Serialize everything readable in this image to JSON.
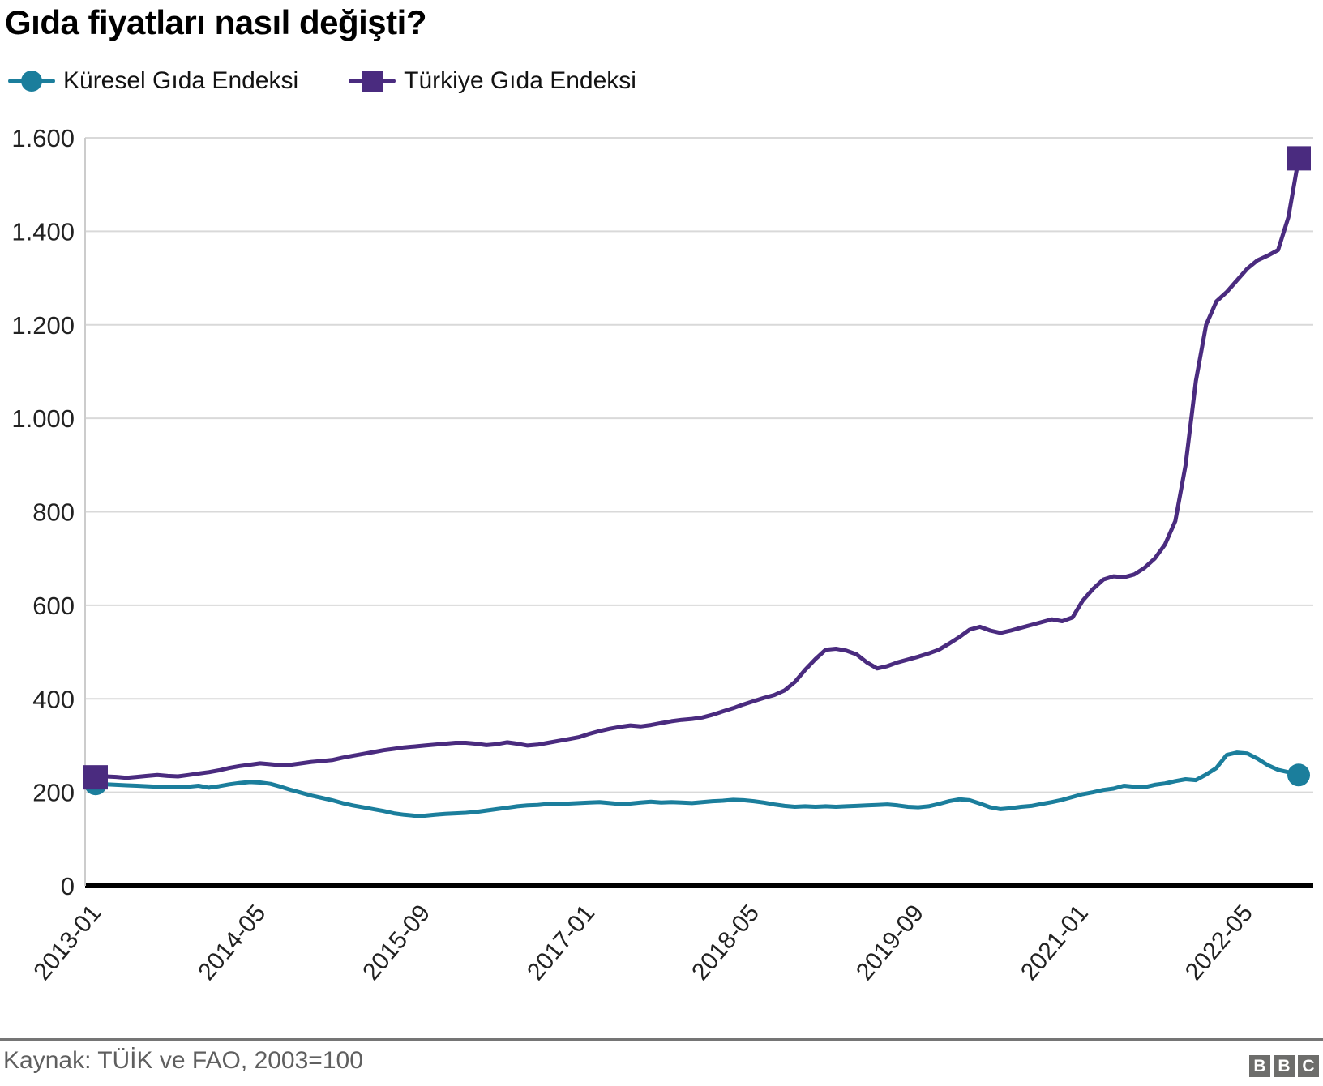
{
  "title": "Gıda fiyatları nasıl değişti?",
  "legend": {
    "items": [
      {
        "label": "Küresel Gıda Endeksi",
        "color": "#1b7e9c",
        "marker": "circle"
      },
      {
        "label": "Türkiye Gıda Endeksi",
        "color": "#4a2b7f",
        "marker": "square"
      }
    ]
  },
  "footer": {
    "source": "Kaynak: TÜİK ve FAO, 2003=100",
    "logo_letters": [
      "B",
      "B",
      "C"
    ]
  },
  "colors": {
    "global_series": "#1b7e9c",
    "turkey_series": "#4a2b7f",
    "gridline": "#d9d9d9",
    "axis": "#000000",
    "tick_text": "#222222"
  },
  "chart_data": {
    "type": "line",
    "title": "Gıda fiyatları nasıl değişti?",
    "x_start": "2013-01",
    "x_end": "2022-10",
    "x_unit": "month",
    "x_tick_labels": [
      "2013-01",
      "2014-05",
      "2015-09",
      "2017-01",
      "2018-05",
      "2019-09",
      "2021-01",
      "2022-05"
    ],
    "x_tick_month_offsets": [
      0,
      16,
      32,
      48,
      64,
      80,
      96,
      112
    ],
    "y_ticks": [
      0,
      200,
      400,
      600,
      800,
      1000,
      1200,
      1400,
      1600
    ],
    "y_tick_labels": [
      "0",
      "200",
      "400",
      "600",
      "800",
      "1.000",
      "1.200",
      "1.400",
      "1.600"
    ],
    "ylim": [
      0,
      1600
    ],
    "grid": "horizontal",
    "legend_position": "top-left",
    "series": [
      {
        "name": "Küresel Gıda Endeksi",
        "color": "#1b7e9c",
        "marker": "circle",
        "values": [
          218,
          217,
          216,
          215,
          214,
          213,
          212,
          211,
          211,
          212,
          214,
          210,
          213,
          217,
          220,
          222,
          221,
          218,
          212,
          205,
          199,
          193,
          188,
          183,
          177,
          172,
          168,
          164,
          160,
          155,
          152,
          150,
          150,
          152,
          154,
          155,
          156,
          158,
          161,
          164,
          167,
          170,
          172,
          173,
          175,
          176,
          176,
          177,
          178,
          179,
          177,
          175,
          176,
          178,
          180,
          178,
          179,
          178,
          177,
          179,
          181,
          182,
          184,
          183,
          181,
          178,
          174,
          171,
          169,
          170,
          169,
          170,
          169,
          170,
          171,
          172,
          173,
          174,
          172,
          169,
          168,
          170,
          175,
          181,
          185,
          183,
          176,
          168,
          164,
          166,
          169,
          171,
          175,
          179,
          184,
          190,
          196,
          200,
          205,
          208,
          214,
          212,
          211,
          216,
          219,
          224,
          228,
          226,
          238,
          252,
          280,
          285,
          283,
          272,
          258,
          248,
          243,
          237
        ]
      },
      {
        "name": "Türkiye Gıda Endeksi",
        "color": "#4a2b7f",
        "marker": "square",
        "values": [
          232,
          234,
          233,
          231,
          233,
          235,
          237,
          235,
          234,
          237,
          240,
          243,
          247,
          252,
          256,
          259,
          262,
          260,
          258,
          259,
          262,
          265,
          267,
          269,
          274,
          278,
          282,
          286,
          290,
          293,
          296,
          298,
          300,
          302,
          304,
          306,
          306,
          304,
          301,
          303,
          307,
          304,
          300,
          302,
          306,
          310,
          314,
          318,
          325,
          331,
          336,
          340,
          343,
          341,
          344,
          348,
          352,
          355,
          357,
          360,
          366,
          373,
          380,
          388,
          395,
          402,
          408,
          418,
          436,
          462,
          485,
          505,
          507,
          503,
          495,
          478,
          465,
          470,
          478,
          484,
          490,
          497,
          505,
          518,
          532,
          548,
          554,
          546,
          541,
          546,
          552,
          558,
          564,
          570,
          566,
          574,
          610,
          635,
          655,
          662,
          660,
          666,
          680,
          700,
          730,
          780,
          900,
          1080,
          1200,
          1250,
          1270,
          1295,
          1320,
          1338,
          1348,
          1360,
          1430,
          1556
        ]
      }
    ]
  }
}
